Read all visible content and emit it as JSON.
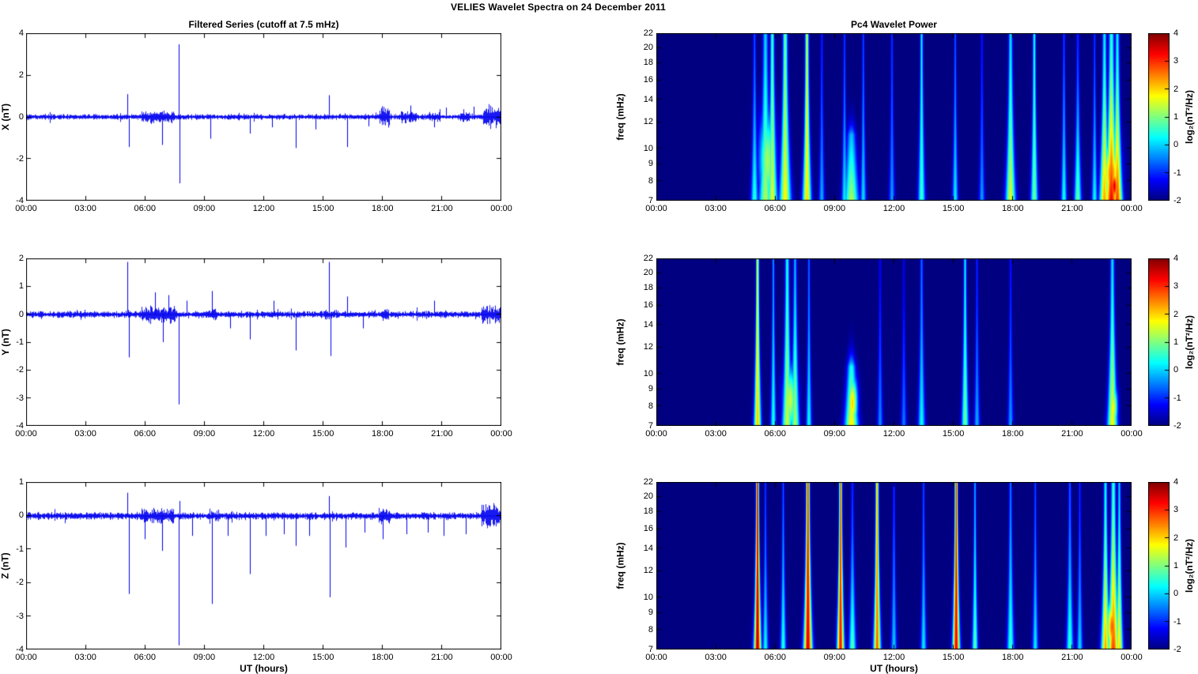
{
  "figure": {
    "title": "VELIES Wavelet Spectra on 24 December  2011",
    "background_color": "#ffffff",
    "line_color": "#0000ee"
  },
  "axes": {
    "xlabel": "UT (hours)",
    "time_ticks": [
      "00:00",
      "03:00",
      "06:00",
      "09:00",
      "12:00",
      "15:00",
      "18:00",
      "21:00",
      "00:00"
    ],
    "time_range_hours": [
      0,
      24
    ],
    "colorbar": {
      "label": "log₂(nT²/Hz)",
      "ticks": [
        4,
        3,
        2,
        1,
        0,
        -1,
        -2
      ],
      "range": [
        -2,
        4
      ]
    }
  },
  "chart_data": [
    {
      "type": "line",
      "title": "Filtered Series (cutoff at 7.5 mHz)",
      "ylabel": "X (nT)",
      "ylim": [
        -4,
        4
      ],
      "yticks": [
        4,
        2,
        0,
        -2,
        -4
      ],
      "noise_amplitude": 0.12,
      "spikes": [
        {
          "t": 5.12,
          "a": 1.1
        },
        {
          "t": 5.18,
          "a": -1.45
        },
        {
          "t": 6.85,
          "a": -1.35
        },
        {
          "t": 7.7,
          "a": 3.5
        },
        {
          "t": 7.74,
          "a": -3.2
        },
        {
          "t": 9.3,
          "a": -1.05
        },
        {
          "t": 11.3,
          "a": -0.8
        },
        {
          "t": 12.4,
          "a": -0.5
        },
        {
          "t": 13.6,
          "a": -1.5
        },
        {
          "t": 14.6,
          "a": -0.6
        },
        {
          "t": 15.3,
          "a": 1.05
        },
        {
          "t": 16.2,
          "a": -1.45
        },
        {
          "t": 17.3,
          "a": -0.45
        },
        {
          "t": 19.4,
          "a": 0.55
        },
        {
          "t": 20.6,
          "a": -0.5
        },
        {
          "t": 21.2,
          "a": 0.45
        },
        {
          "t": 22.6,
          "a": 0.5
        }
      ],
      "bursts": [
        {
          "t0": 5.8,
          "t1": 7.5,
          "factor": 2.3
        },
        {
          "t0": 17.85,
          "t1": 18.35,
          "factor": 3.6
        },
        {
          "t0": 18.9,
          "t1": 19.7,
          "factor": 2.2
        },
        {
          "t0": 20.3,
          "t1": 20.9,
          "factor": 1.7
        },
        {
          "t0": 21.9,
          "t1": 22.4,
          "factor": 1.7
        },
        {
          "t0": 23.05,
          "t1": 24.0,
          "factor": 4.0
        }
      ]
    },
    {
      "type": "line",
      "title": "",
      "ylabel": "Y (nT)",
      "ylim": [
        -4,
        2
      ],
      "yticks": [
        2,
        1,
        0,
        -1,
        -2,
        -3,
        -4
      ],
      "noise_amplitude": 0.11,
      "spikes": [
        {
          "t": 5.12,
          "a": 1.9
        },
        {
          "t": 5.18,
          "a": -1.55
        },
        {
          "t": 6.5,
          "a": 0.8
        },
        {
          "t": 6.9,
          "a": -1.0
        },
        {
          "t": 7.2,
          "a": 0.7
        },
        {
          "t": 7.7,
          "a": -3.25
        },
        {
          "t": 8.1,
          "a": 0.5
        },
        {
          "t": 9.4,
          "a": 0.85
        },
        {
          "t": 10.3,
          "a": -0.5
        },
        {
          "t": 11.3,
          "a": -0.9
        },
        {
          "t": 12.5,
          "a": 0.5
        },
        {
          "t": 13.6,
          "a": -1.3
        },
        {
          "t": 15.3,
          "a": 1.9
        },
        {
          "t": 15.36,
          "a": -1.5
        },
        {
          "t": 16.2,
          "a": 0.65
        },
        {
          "t": 17.0,
          "a": -0.5
        },
        {
          "t": 20.6,
          "a": 0.5
        }
      ],
      "bursts": [
        {
          "t0": 5.8,
          "t1": 7.6,
          "factor": 2.6
        },
        {
          "t0": 9.0,
          "t1": 9.6,
          "factor": 1.5
        },
        {
          "t0": 15.0,
          "t1": 15.6,
          "factor": 1.4
        },
        {
          "t0": 17.9,
          "t1": 18.3,
          "factor": 1.8
        },
        {
          "t0": 23.0,
          "t1": 24.0,
          "factor": 2.8
        }
      ]
    },
    {
      "type": "line",
      "title": "",
      "ylabel": "Z (nT)",
      "ylim": [
        -4,
        1
      ],
      "yticks": [
        1,
        0,
        -1,
        -2,
        -3,
        -4
      ],
      "noise_amplitude": 0.1,
      "spikes": [
        {
          "t": 5.12,
          "a": 0.7
        },
        {
          "t": 5.18,
          "a": -2.35
        },
        {
          "t": 6.0,
          "a": -0.7
        },
        {
          "t": 6.85,
          "a": -1.05
        },
        {
          "t": 7.7,
          "a": -3.9
        },
        {
          "t": 7.74,
          "a": 0.45
        },
        {
          "t": 8.4,
          "a": -0.6
        },
        {
          "t": 9.4,
          "a": -2.65
        },
        {
          "t": 10.2,
          "a": -0.6
        },
        {
          "t": 11.3,
          "a": -1.75
        },
        {
          "t": 12.1,
          "a": -0.6
        },
        {
          "t": 13.0,
          "a": -0.55
        },
        {
          "t": 13.6,
          "a": -0.9
        },
        {
          "t": 14.3,
          "a": -0.6
        },
        {
          "t": 15.28,
          "a": 0.6
        },
        {
          "t": 15.32,
          "a": -2.45
        },
        {
          "t": 16.15,
          "a": -0.95
        },
        {
          "t": 17.1,
          "a": -0.5
        },
        {
          "t": 18.0,
          "a": -0.7
        },
        {
          "t": 19.2,
          "a": -0.55
        },
        {
          "t": 20.3,
          "a": -0.5
        },
        {
          "t": 21.1,
          "a": -0.6
        },
        {
          "t": 22.2,
          "a": -0.55
        }
      ],
      "bursts": [
        {
          "t0": 5.8,
          "t1": 7.5,
          "factor": 2.0
        },
        {
          "t0": 9.2,
          "t1": 9.8,
          "factor": 1.5
        },
        {
          "t0": 17.8,
          "t1": 18.4,
          "factor": 2.1
        },
        {
          "t0": 23.0,
          "t1": 24.0,
          "factor": 3.2
        }
      ]
    },
    {
      "type": "heatmap",
      "title": "Pc4 Wavelet Power",
      "ylabel": "freq (mHz)",
      "ylim": [
        7,
        22
      ],
      "yscale": "log",
      "yticks": [
        22,
        20,
        18,
        16,
        14,
        12,
        10,
        9,
        8,
        7
      ],
      "scale": [
        -2,
        4
      ],
      "background_value": -2,
      "streaks": [
        {
          "t": 4.95,
          "w": 0.05,
          "vtop": -0.8,
          "vbase": 0.5
        },
        {
          "t": 5.5,
          "w": 0.09,
          "vtop": 0.0,
          "vbase": 1.3
        },
        {
          "t": 5.85,
          "w": 0.07,
          "vtop": 0.6,
          "vbase": 1.6
        },
        {
          "t": 6.5,
          "w": 0.08,
          "vtop": 0.9,
          "vbase": 1.8
        },
        {
          "t": 7.6,
          "w": 0.06,
          "vtop": 1.4,
          "vbase": 2.0
        },
        {
          "t": 8.35,
          "w": 0.04,
          "vtop": -1.0,
          "vbase": -0.2
        },
        {
          "t": 9.5,
          "w": 0.04,
          "vtop": -0.9,
          "vbase": 0.2
        },
        {
          "t": 9.85,
          "w": 0.1,
          "vtop": -1.6,
          "vbase": 1.3,
          "fmax": 11
        },
        {
          "t": 10.45,
          "w": 0.04,
          "vtop": -0.8,
          "vbase": 0.1
        },
        {
          "t": 11.9,
          "w": 0.04,
          "vtop": -0.9,
          "vbase": -0.3
        },
        {
          "t": 13.4,
          "w": 0.05,
          "vtop": 0.2,
          "vbase": 0.6
        },
        {
          "t": 15.1,
          "w": 0.04,
          "vtop": -0.7,
          "vbase": 0.2
        },
        {
          "t": 16.45,
          "w": 0.04,
          "vtop": -1.1,
          "vbase": -0.3
        },
        {
          "t": 17.9,
          "w": 0.07,
          "vtop": 0.1,
          "vbase": 1.6
        },
        {
          "t": 19.1,
          "w": 0.05,
          "vtop": 0.4,
          "vbase": 0.9
        },
        {
          "t": 20.6,
          "w": 0.04,
          "vtop": -0.8,
          "vbase": 0.4
        },
        {
          "t": 21.3,
          "w": 0.05,
          "vtop": -1.0,
          "vbase": 0.9
        },
        {
          "t": 22.15,
          "w": 0.04,
          "vtop": -0.9,
          "vbase": 0.3
        },
        {
          "t": 22.65,
          "w": 0.07,
          "vtop": 0.2,
          "vbase": 2.3
        },
        {
          "t": 23.0,
          "w": 0.09,
          "vtop": 0.5,
          "vbase": 3.3
        },
        {
          "t": 23.3,
          "w": 0.07,
          "vtop": 0.2,
          "vbase": 2.9
        }
      ],
      "blobs": [
        {
          "t": 5.6,
          "w": 0.3,
          "f_lo": 7,
          "f_hi": 12,
          "v": 1.2
        },
        {
          "t": 23.0,
          "w": 0.3,
          "f_lo": 7,
          "f_hi": 10,
          "v": 2.6
        },
        {
          "t": 23.15,
          "w": 0.15,
          "f_lo": 7,
          "f_hi": 8.5,
          "v": 3.4
        }
      ]
    },
    {
      "type": "heatmap",
      "title": "",
      "ylabel": "freq (mHz)",
      "ylim": [
        7,
        22
      ],
      "yscale": "log",
      "yticks": [
        22,
        20,
        18,
        16,
        14,
        12,
        10,
        9,
        8,
        7
      ],
      "scale": [
        -2,
        4
      ],
      "background_value": -2,
      "streaks": [
        {
          "t": 5.1,
          "w": 0.05,
          "vtop": 1.6,
          "vbase": 2.1
        },
        {
          "t": 5.9,
          "w": 0.04,
          "vtop": -0.3,
          "vbase": 0.4
        },
        {
          "t": 6.6,
          "w": 0.07,
          "vtop": 0.4,
          "vbase": 1.5
        },
        {
          "t": 7.0,
          "w": 0.06,
          "vtop": -0.2,
          "vbase": 1.3
        },
        {
          "t": 7.7,
          "w": 0.04,
          "vtop": -0.6,
          "vbase": 0.3
        },
        {
          "t": 9.85,
          "w": 0.09,
          "vtop": -1.6,
          "vbase": 1.9,
          "fmax": 10.5
        },
        {
          "t": 11.3,
          "w": 0.04,
          "vtop": -1.2,
          "vbase": -0.4
        },
        {
          "t": 12.5,
          "w": 0.04,
          "vtop": -1.3,
          "vbase": -0.5
        },
        {
          "t": 13.4,
          "w": 0.05,
          "vtop": -0.6,
          "vbase": 0.3
        },
        {
          "t": 15.6,
          "w": 0.05,
          "vtop": 0.2,
          "vbase": 0.9
        },
        {
          "t": 16.2,
          "w": 0.04,
          "vtop": -1.0,
          "vbase": -0.2
        },
        {
          "t": 17.9,
          "w": 0.04,
          "vtop": -1.1,
          "vbase": -0.3
        },
        {
          "t": 23.05,
          "w": 0.07,
          "vtop": 0.1,
          "vbase": 1.8
        }
      ],
      "blobs": [
        {
          "t": 6.75,
          "w": 0.25,
          "f_lo": 7,
          "f_hi": 10,
          "v": 1.4
        },
        {
          "t": 9.9,
          "w": 0.18,
          "f_lo": 7,
          "f_hi": 9.5,
          "v": 2.0
        },
        {
          "t": 23.1,
          "w": 0.15,
          "f_lo": 7,
          "f_hi": 9,
          "v": 1.7
        }
      ]
    },
    {
      "type": "heatmap",
      "title": "",
      "ylabel": "freq (mHz)",
      "ylim": [
        7,
        22
      ],
      "yscale": "log",
      "yticks": [
        22,
        20,
        18,
        16,
        14,
        12,
        10,
        9,
        8,
        7
      ],
      "scale": [
        -2,
        4
      ],
      "background_value": -2,
      "streaks": [
        {
          "t": 5.1,
          "w": 0.05,
          "vtop": 3.4,
          "vbase": 3.7
        },
        {
          "t": 5.5,
          "w": 0.04,
          "vtop": -0.9,
          "vbase": 0.3
        },
        {
          "t": 6.4,
          "w": 0.04,
          "vtop": -0.7,
          "vbase": 0.5
        },
        {
          "t": 7.65,
          "w": 0.06,
          "vtop": 3.1,
          "vbase": 3.5
        },
        {
          "t": 9.3,
          "w": 0.05,
          "vtop": 2.9,
          "vbase": 3.2
        },
        {
          "t": 9.9,
          "w": 0.05,
          "vtop": -1.0,
          "vbase": 0.8
        },
        {
          "t": 11.15,
          "w": 0.05,
          "vtop": 2.3,
          "vbase": 2.7
        },
        {
          "t": 12.0,
          "w": 0.04,
          "vtop": -0.9,
          "vbase": 0.0
        },
        {
          "t": 13.5,
          "w": 0.04,
          "vtop": -0.8,
          "vbase": 0.2
        },
        {
          "t": 15.15,
          "w": 0.05,
          "vtop": 3.1,
          "vbase": 3.4
        },
        {
          "t": 16.1,
          "w": 0.04,
          "vtop": -0.2,
          "vbase": 0.8
        },
        {
          "t": 17.9,
          "w": 0.05,
          "vtop": -0.5,
          "vbase": 0.6
        },
        {
          "t": 19.15,
          "w": 0.04,
          "vtop": -0.8,
          "vbase": 0.2
        },
        {
          "t": 20.9,
          "w": 0.05,
          "vtop": -0.7,
          "vbase": 0.6
        },
        {
          "t": 21.4,
          "w": 0.04,
          "vtop": -1.0,
          "vbase": 0.1
        },
        {
          "t": 22.7,
          "w": 0.06,
          "vtop": 0.3,
          "vbase": 2.3
        },
        {
          "t": 23.1,
          "w": 0.08,
          "vtop": 0.6,
          "vbase": 2.9
        },
        {
          "t": 23.4,
          "w": 0.05,
          "vtop": 0.0,
          "vbase": 2.0
        }
      ],
      "blobs": [
        {
          "t": 7.65,
          "w": 0.1,
          "f_lo": 7,
          "f_hi": 9,
          "v": 2.7
        },
        {
          "t": 9.3,
          "w": 0.08,
          "f_lo": 7,
          "f_hi": 8.5,
          "v": 2.4
        },
        {
          "t": 15.15,
          "w": 0.08,
          "f_lo": 7,
          "f_hi": 8.5,
          "v": 2.2
        },
        {
          "t": 23.05,
          "w": 0.22,
          "f_lo": 7,
          "f_hi": 9.5,
          "v": 2.7
        }
      ]
    }
  ]
}
